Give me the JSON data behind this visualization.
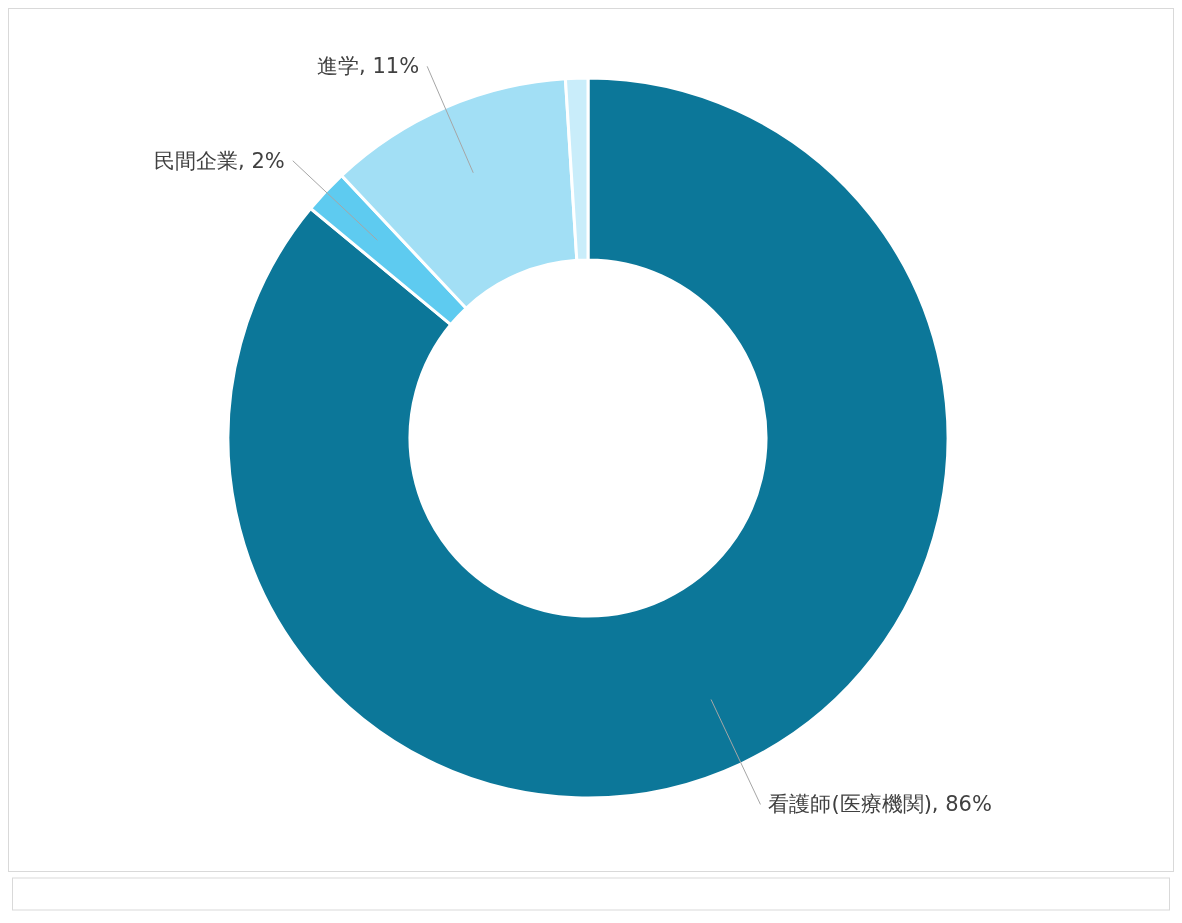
{
  "chart_data": {
    "type": "donut",
    "categories": [
      "看護師(医療機関)",
      "民間企業",
      "進学",
      null
    ],
    "values": [
      86,
      2,
      11,
      1
    ],
    "value_labels": [
      "86%",
      "2%",
      "11%",
      null
    ],
    "colors": [
      "#0c7799",
      "#5ecbf0",
      "#a2dff5",
      "#c9edfa"
    ]
  }
}
